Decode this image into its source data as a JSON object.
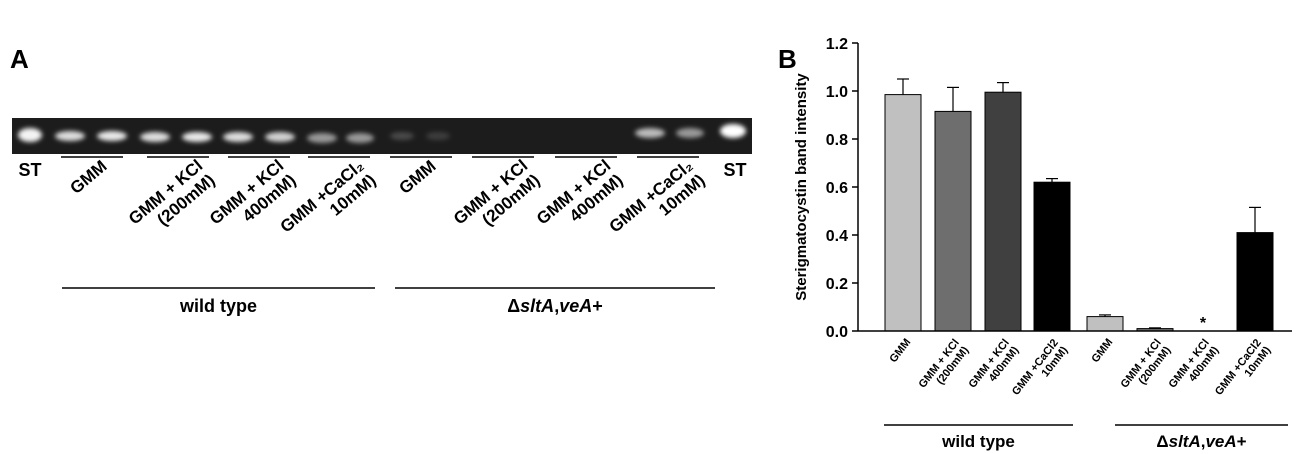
{
  "panel_a": {
    "label": "A",
    "standard_left": "ST",
    "standard_right": "ST",
    "groups": [
      {
        "name_parts": [
          {
            "text": "wild type"
          }
        ],
        "lanes": [
          [
            "GMM"
          ],
          [
            "GMM + KCl",
            "(200mM)"
          ],
          [
            "GMM + KCl",
            "400mM)"
          ],
          [
            "GMM +CaCl₂",
            "10mM)"
          ]
        ]
      },
      {
        "name_parts": [
          {
            "text": "Δ"
          },
          {
            "text": "sltA",
            "italic": true
          },
          {
            "text": ","
          },
          {
            "text": "veA",
            "italic": true
          },
          {
            "text": "+"
          }
        ],
        "lanes": [
          [
            "GMM"
          ],
          [
            "GMM + KCl",
            "(200mM)"
          ],
          [
            "GMM + KCl",
            "400mM)"
          ],
          [
            "GMM +CaCl₂",
            "10mM)"
          ]
        ]
      }
    ]
  },
  "chart_data": {
    "type": "bar",
    "panel_label": "B",
    "ylabel": "Sterigmatocystin band intensity",
    "ylim": [
      0,
      1.2
    ],
    "yticks": [
      {
        "value": 0,
        "label": "0.0"
      },
      0.2,
      0.4,
      0.6,
      0.8,
      {
        "value": 1,
        "label": "1.0"
      },
      1.2
    ],
    "annotation": "*",
    "groups": [
      {
        "name_parts": [
          {
            "text": "wild type"
          }
        ],
        "categories": [
          [
            "GMM"
          ],
          [
            "GMM + KCl",
            "(200mM)"
          ],
          [
            "GMM + KCl",
            "400mM)"
          ],
          [
            "GMM +CaCl2",
            "10mM)"
          ]
        ],
        "values": [
          0.985,
          0.915,
          0.995,
          0.62
        ],
        "errors": [
          0.065,
          0.1,
          0.04,
          0.015
        ],
        "colors": [
          "#c0c0c0",
          "#6e6e6e",
          "#404040",
          "#000000"
        ]
      },
      {
        "name_parts": [
          {
            "text": "Δ"
          },
          {
            "text": "sltA",
            "italic": true
          },
          {
            "text": ","
          },
          {
            "text": "veA",
            "italic": true
          },
          {
            "text": "+"
          }
        ],
        "categories": [
          [
            "GMM"
          ],
          [
            "GMM + KCl",
            "(200mM)"
          ],
          [
            "GMM + KCl",
            "400mM)"
          ],
          [
            "GMM +CaCl2",
            "10mM)"
          ]
        ],
        "values": [
          0.06,
          0.01,
          0,
          0.41
        ],
        "errors": [
          0.007,
          0.003,
          0,
          0.105
        ],
        "colors": [
          "#c0c0c0",
          "#6e6e6e",
          "#404040",
          "#000000"
        ]
      }
    ]
  }
}
